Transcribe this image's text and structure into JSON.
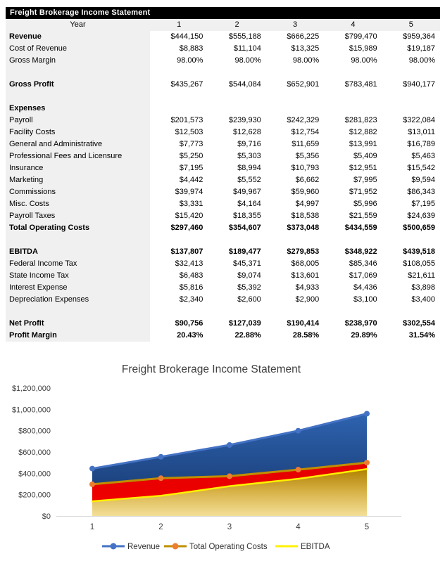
{
  "table": {
    "title": "Freight Brokerage Income Statement",
    "year_label": "Year",
    "year_columns": [
      "1",
      "2",
      "3",
      "4",
      "5"
    ],
    "rows": [
      {
        "label": "Revenue",
        "bl": true,
        "values": [
          "$444,150",
          "$555,188",
          "$666,225",
          "$799,470",
          "$959,364"
        ]
      },
      {
        "label": "Cost of Revenue",
        "values": [
          "$8,883",
          "$11,104",
          "$13,325",
          "$15,989",
          "$19,187"
        ]
      },
      {
        "label": "Gross Margin",
        "values": [
          "98.00%",
          "98.00%",
          "98.00%",
          "98.00%",
          "98.00%"
        ]
      },
      {
        "label": "",
        "values": [
          "",
          "",
          "",
          "",
          ""
        ]
      },
      {
        "label": "Gross Profit",
        "bl": true,
        "values": [
          "$435,267",
          "$544,084",
          "$652,901",
          "$783,481",
          "$940,177"
        ]
      },
      {
        "label": "",
        "values": [
          "",
          "",
          "",
          "",
          ""
        ]
      },
      {
        "label": "Expenses",
        "bl": true,
        "values": [
          "",
          "",
          "",
          "",
          ""
        ]
      },
      {
        "label": "Payroll",
        "values": [
          "$201,573",
          "$239,930",
          "$242,329",
          "$281,823",
          "$322,084"
        ]
      },
      {
        "label": "Facility Costs",
        "values": [
          "$12,503",
          "$12,628",
          "$12,754",
          "$12,882",
          "$13,011"
        ]
      },
      {
        "label": "General and Administrative",
        "values": [
          "$7,773",
          "$9,716",
          "$11,659",
          "$13,991",
          "$16,789"
        ]
      },
      {
        "label": "Professional Fees and Licensure",
        "values": [
          "$5,250",
          "$5,303",
          "$5,356",
          "$5,409",
          "$5,463"
        ]
      },
      {
        "label": "Insurance",
        "values": [
          "$7,195",
          "$8,994",
          "$10,793",
          "$12,951",
          "$15,542"
        ]
      },
      {
        "label": "Marketing",
        "values": [
          "$4,442",
          "$5,552",
          "$6,662",
          "$7,995",
          "$9,594"
        ]
      },
      {
        "label": "Commissions",
        "values": [
          "$39,974",
          "$49,967",
          "$59,960",
          "$71,952",
          "$86,343"
        ]
      },
      {
        "label": "Misc. Costs",
        "values": [
          "$3,331",
          "$4,164",
          "$4,997",
          "$5,996",
          "$7,195"
        ]
      },
      {
        "label": "Payroll Taxes",
        "values": [
          "$15,420",
          "$18,355",
          "$18,538",
          "$21,559",
          "$24,639"
        ]
      },
      {
        "label": "Total Operating Costs",
        "bl": true,
        "bv": true,
        "values": [
          "$297,460",
          "$354,607",
          "$373,048",
          "$434,559",
          "$500,659"
        ]
      },
      {
        "label": "",
        "values": [
          "",
          "",
          "",
          "",
          ""
        ]
      },
      {
        "label": "EBITDA",
        "bl": true,
        "bv": true,
        "values": [
          "$137,807",
          "$189,477",
          "$279,853",
          "$348,922",
          "$439,518"
        ]
      },
      {
        "label": "Federal Income Tax",
        "values": [
          "$32,413",
          "$45,371",
          "$68,005",
          "$85,346",
          "$108,055"
        ]
      },
      {
        "label": "State Income Tax",
        "values": [
          "$6,483",
          "$9,074",
          "$13,601",
          "$17,069",
          "$21,611"
        ]
      },
      {
        "label": "Interest Expense",
        "values": [
          "$5,816",
          "$5,392",
          "$4,933",
          "$4,436",
          "$3,898"
        ]
      },
      {
        "label": "Depreciation Expenses",
        "values": [
          "$2,340",
          "$2,600",
          "$2,900",
          "$3,100",
          "$3,400"
        ]
      },
      {
        "label": "",
        "values": [
          "",
          "",
          "",
          "",
          ""
        ]
      },
      {
        "label": "Net Profit",
        "bl": true,
        "bv": true,
        "values": [
          "$90,756",
          "$127,039",
          "$190,414",
          "$238,970",
          "$302,554"
        ]
      },
      {
        "label": "Profit Margin",
        "bl": true,
        "bv": true,
        "values": [
          "20.43%",
          "22.88%",
          "28.58%",
          "29.89%",
          "31.54%"
        ]
      }
    ]
  },
  "chart_data": {
    "type": "area",
    "title": "Freight Brokerage Income Statement",
    "x": [
      1,
      2,
      3,
      4,
      5
    ],
    "x_tick_labels": [
      "1",
      "2",
      "3",
      "4",
      "5"
    ],
    "series": [
      {
        "name": "Revenue",
        "values": [
          444150,
          555188,
          666225,
          799470,
          959364
        ],
        "line_color": "#4472C4",
        "marker": true,
        "marker_color": "#4472C4",
        "lw": 3,
        "fill_top": "#2E63B0",
        "fill_bottom": "#15356A"
      },
      {
        "name": "Total Operating Costs",
        "values": [
          297460,
          354607,
          373048,
          434559,
          500659
        ],
        "line_color": "#BF8F00",
        "marker": true,
        "marker_color": "#ED7D31",
        "lw": 3,
        "fill_top": "#E30000",
        "fill_bottom": "#F40000"
      },
      {
        "name": "EBITDA",
        "values": [
          137807,
          189477,
          279853,
          348922,
          439518
        ],
        "line_color": "#FFF100",
        "marker": false,
        "lw": 2.5,
        "fill_top": "#B08000",
        "fill_mid": "#D9B44A",
        "fill_bottom": "#F3DF99"
      }
    ],
    "xlabel": "",
    "ylabel": "",
    "ylim": [
      0,
      1200000
    ],
    "y_tick_step": 200000,
    "y_tick_labels": [
      "$0",
      "$200,000",
      "$400,000",
      "$600,000",
      "$800,000",
      "$1,000,000",
      "$1,200,000"
    ],
    "grid": false,
    "legend_position": "bottom",
    "legend": [
      "Revenue",
      "Total Operating Costs",
      "EBITDA"
    ]
  },
  "colors": {
    "table_header_bg": "#000000",
    "table_header_text": "#FFFFFF",
    "label_column_bg": "#F0F0F0",
    "axis_line": "#D9D9D9",
    "chart_text": "#404040"
  }
}
